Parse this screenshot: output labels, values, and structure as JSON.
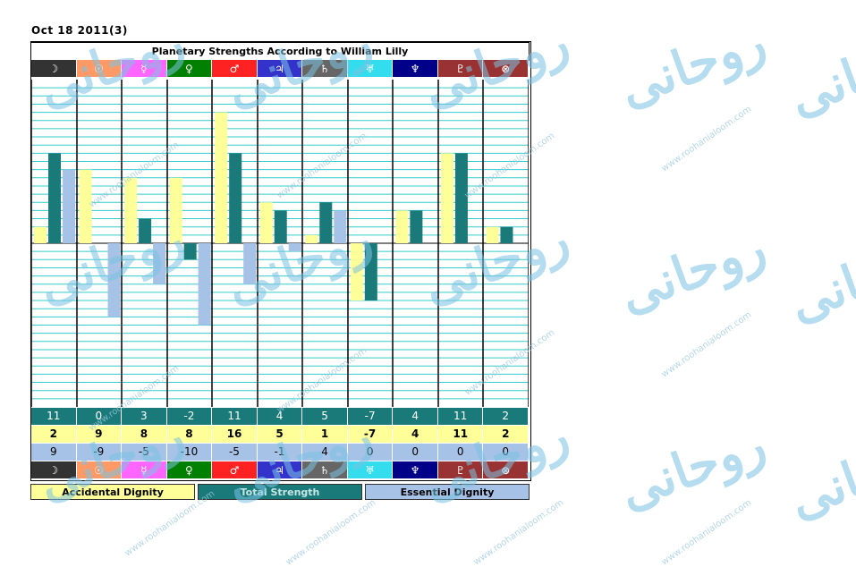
{
  "header": {
    "date": "Oct 18  2011(3)"
  },
  "chart_data": {
    "type": "bar",
    "title": "Planetary Strengths According to William Lilly",
    "categories": [
      "Moon",
      "Sun",
      "Mercury",
      "Venus",
      "Mars",
      "Jupiter",
      "Saturn",
      "Uranus",
      "Neptune",
      "Pluto",
      "Part of Fortune"
    ],
    "symbols": [
      "☽",
      "☉",
      "☿",
      "♀",
      "♂",
      "♃",
      "♄",
      "♅",
      "♆",
      "♇",
      "⊗"
    ],
    "symbol_colors": [
      "#333333",
      "#ff9966",
      "#ff66ff",
      "#008000",
      "#ff2222",
      "#3333cc",
      "#666666",
      "#33ddee",
      "#000088",
      "#993333",
      "#993333"
    ],
    "series": [
      {
        "name": "Accidental Dignity",
        "color": "#ffff99",
        "values": [
          2,
          9,
          8,
          8,
          16,
          5,
          1,
          -7,
          4,
          11,
          2
        ]
      },
      {
        "name": "Total Strength",
        "color": "#1a7a7a",
        "values": [
          11,
          0,
          3,
          -2,
          11,
          4,
          5,
          -7,
          4,
          11,
          2
        ]
      },
      {
        "name": "Essential Dignity",
        "color": "#a6c2e6",
        "values": [
          9,
          -9,
          -5,
          -10,
          -5,
          -1,
          4,
          0,
          0,
          0,
          0
        ]
      }
    ],
    "ylim": [
      -20,
      20
    ],
    "grid": true
  },
  "rows": {
    "total": [
      "11",
      "0",
      "3",
      "-2",
      "11",
      "4",
      "5",
      "-7",
      "4",
      "11",
      "2"
    ],
    "accidental": [
      "2",
      "9",
      "8",
      "8",
      "16",
      "5",
      "1",
      "-7",
      "4",
      "11",
      "2"
    ],
    "essential": [
      "9",
      "-9",
      "-5",
      "-10",
      "-5",
      "-1",
      "4",
      "0",
      "0",
      "0",
      "0"
    ]
  },
  "legend": {
    "accidental": "Accidental Dignity",
    "total": "Total Strength",
    "essential": "Essential Dignity"
  },
  "colors": {
    "accidental": "#ffff99",
    "total": "#1a7a7a",
    "essential": "#a6c2e6",
    "grid": "#33cccc"
  },
  "watermark": {
    "url": "www.roohanialoom.com",
    "arabic": "روحانی"
  }
}
